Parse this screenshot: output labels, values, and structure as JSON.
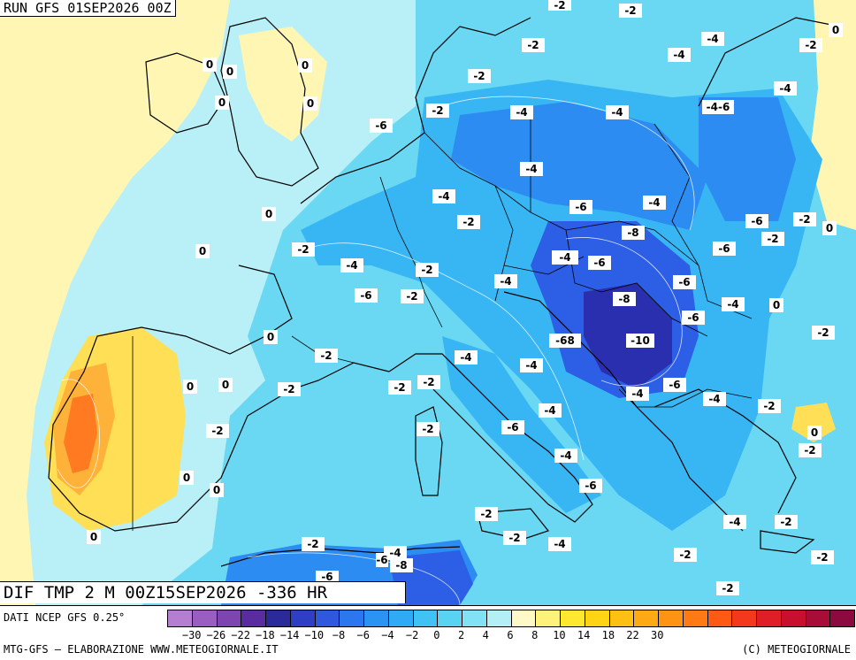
{
  "header": {
    "run": "RUN GFS 01SEP2026 00Z"
  },
  "map": {
    "title": "DIF TMP 2 M 00Z15SEP2026 -336 HR",
    "labels": [
      "-2",
      "-2",
      "-4",
      "0",
      "-2",
      "0",
      "0",
      "0",
      "0",
      "-2",
      "-4",
      "-2",
      "-4",
      "-4",
      "-6",
      "-4",
      "-4",
      "-2",
      "-4",
      "-6",
      "-4",
      "-2",
      "-6",
      "-6",
      "-2",
      "0",
      "0",
      "-2",
      "-4",
      "-2",
      "-8",
      "-4",
      "-6",
      "-6",
      "-4",
      "-2",
      "-4",
      "-6",
      "-2",
      "-8",
      "-6",
      "-4",
      "0",
      "-68",
      "-10",
      "-2",
      "-2",
      "-4",
      "-4",
      "-2",
      "-2",
      "-4",
      "-6",
      "-4",
      "-2",
      "-2",
      "-4",
      "-2",
      "0",
      "0",
      "-4",
      "0",
      "-6",
      "-2",
      "-2",
      "-4",
      "-2",
      "-2",
      "-2",
      "-4",
      "-2",
      "-8",
      "-6",
      "0",
      "-2",
      "-4",
      "-2"
    ],
    "colors": {
      "cold_extreme": "#2a2fb0",
      "cold_deep": "#2d5ee6",
      "cold_mid": "#2c8cf2",
      "cold_light": "#38b6f4",
      "cool": "#6ad8f2",
      "near_zero": "#b9f0f7",
      "warm_light": "#fff6b4",
      "warm": "#ffdf55",
      "warm_orange": "#ffb23a",
      "hot": "#ff7a20"
    }
  },
  "footer": {
    "source": "DATI NCEP GFS 0.25°",
    "credit": "MTG-GFS – ELABORAZIONE WWW.METEOGIORNALE.IT",
    "copyright": "(C) METEOGIORNALE",
    "colorbar": {
      "colors": [
        "#b57ed0",
        "#9a5ec0",
        "#7e44b0",
        "#5a2ca0",
        "#2b2a9a",
        "#2f3fc4",
        "#2f58de",
        "#2b78ee",
        "#2b94f2",
        "#30aaf4",
        "#40c2f4",
        "#58d4f2",
        "#80e2f4",
        "#b4eff6",
        "#fff9c8",
        "#fff27a",
        "#ffe830",
        "#ffd414",
        "#ffc014",
        "#ffaa14",
        "#ff9414",
        "#ff7a14",
        "#ff5a14",
        "#f4381c",
        "#e01e28",
        "#c8102e",
        "#a80c38",
        "#8c0a40"
      ],
      "ticks": [
        "−30",
        "−26",
        "−22",
        "−18",
        "−14",
        "−10",
        "−8",
        "−6",
        "−4",
        "−2",
        "0",
        "2",
        "4",
        "6",
        "8",
        "10",
        "14",
        "18",
        "22",
        "30"
      ]
    }
  }
}
